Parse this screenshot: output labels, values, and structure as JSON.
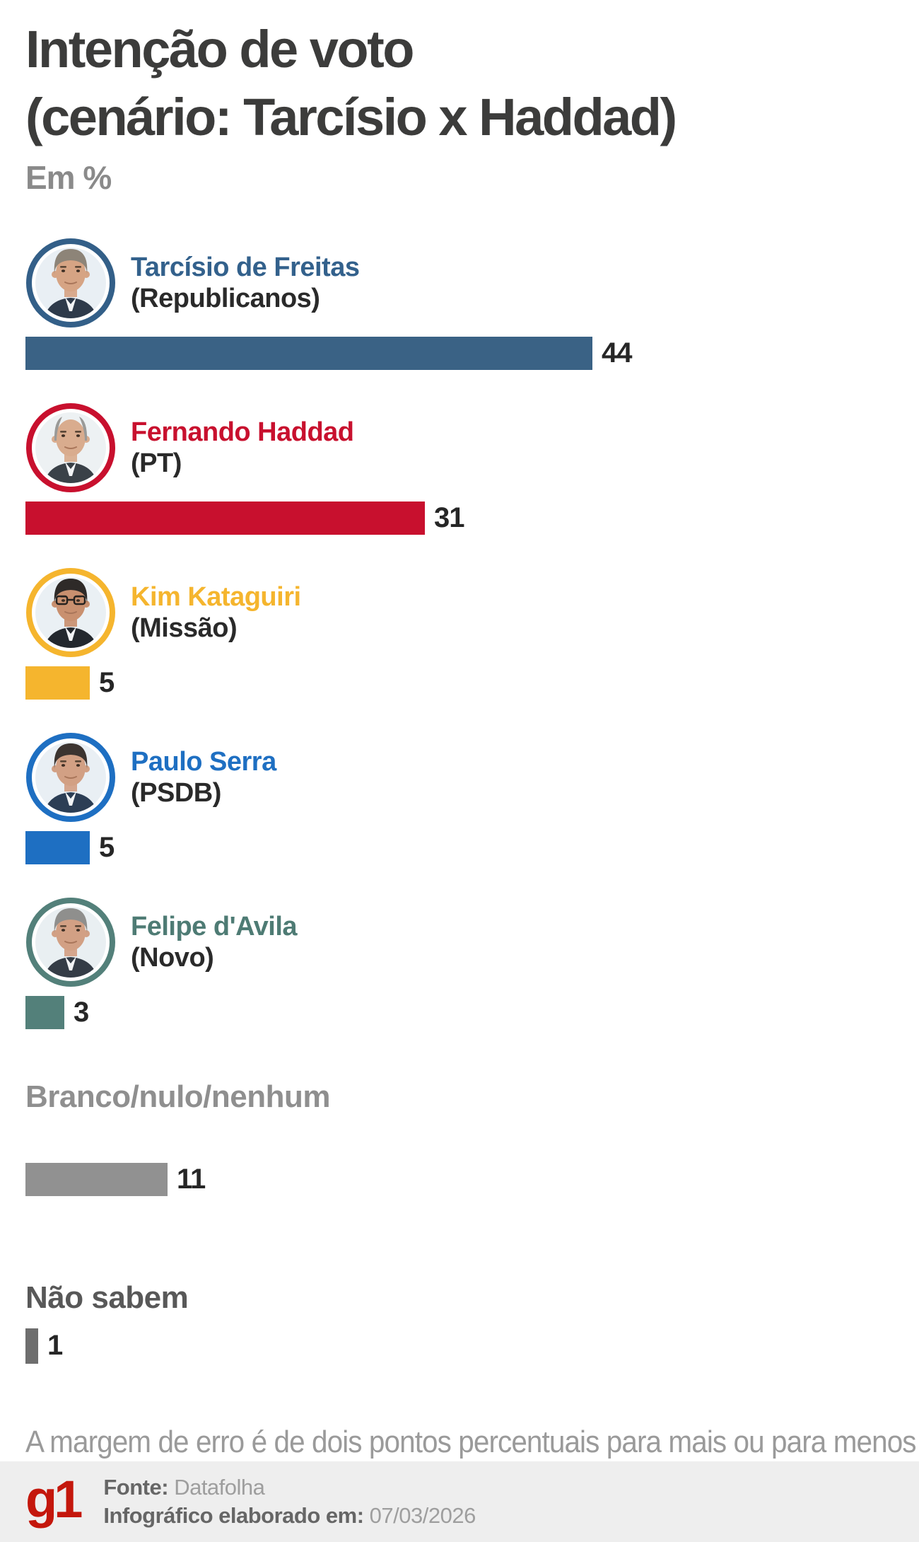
{
  "header": {
    "title_line1": "Intenção de voto",
    "title_line2": "(cenário: Tarcísio x Haddad)",
    "unit_label": "Em %"
  },
  "chart_data": {
    "type": "bar",
    "orientation": "horizontal",
    "unit": "%",
    "title": "Intenção de voto (cenário: Tarcísio x Haddad)",
    "categories": [
      "Tarcísio de Freitas (Republicanos)",
      "Fernando Haddad (PT)",
      "Kim Kataguiri (Missão)",
      "Paulo Serra (PSDB)",
      "Felipe d'Avila (Novo)",
      "Branco/nulo/nenhum",
      "Não sabem"
    ],
    "values": [
      44,
      31,
      5,
      5,
      3,
      11,
      1
    ],
    "colors": [
      "#3A6285",
      "#C8102E",
      "#F5B52E",
      "#1E6FC2",
      "#53807A",
      "#919191",
      "#6E6E6E"
    ],
    "xlim": [
      0,
      44
    ],
    "grid": false,
    "value_labels": "end-of-bar"
  },
  "rows": [
    {
      "type": "candidate",
      "name": "Tarcísio de Freitas",
      "party": "(Republicanos)",
      "value": 44,
      "color": "#3A6285",
      "name_color": "#33618C",
      "avatar": {
        "ring": "#335F88",
        "bg": "#E9EFF4",
        "hair": "#8D8478",
        "skin": "#D6A484",
        "suit": "#2E3A4A",
        "bald": false,
        "glasses": false
      }
    },
    {
      "type": "candidate",
      "name": "Fernando Haddad",
      "party": "(PT)",
      "value": 31,
      "color": "#C8102E",
      "name_color": "#C8102E",
      "avatar": {
        "ring": "#C8102E",
        "bg": "#EDF1F3",
        "hair": "#9A9A98",
        "skin": "#D9AC8E",
        "suit": "#3A4148",
        "bald": true,
        "glasses": false
      }
    },
    {
      "type": "candidate",
      "name": "Kim Kataguiri",
      "party": "(Missão)",
      "value": 5,
      "color": "#F5B52E",
      "name_color": "#F5B52E",
      "avatar": {
        "ring": "#F5B52E",
        "bg": "#EAF0F4",
        "hair": "#2E2A28",
        "skin": "#C9906F",
        "suit": "#23282E",
        "bald": false,
        "glasses": true
      }
    },
    {
      "type": "candidate",
      "name": "Paulo Serra",
      "party": "(PSDB)",
      "value": 5,
      "color": "#1E6FC2",
      "name_color": "#1E6FC2",
      "avatar": {
        "ring": "#1E6FC2",
        "bg": "#E9EFF4",
        "hair": "#3C3430",
        "skin": "#D2A084",
        "suit": "#2C3E55",
        "bald": false,
        "glasses": false
      }
    },
    {
      "type": "candidate",
      "name": "Felipe d'Avila",
      "party": "(Novo)",
      "value": 3,
      "color": "#53807A",
      "name_color": "#4E7B74",
      "avatar": {
        "ring": "#53807A",
        "bg": "#E9EFF2",
        "hair": "#8F8F8D",
        "skin": "#D2A084",
        "suit": "#343C46",
        "bald": false,
        "glasses": false
      }
    },
    {
      "type": "other",
      "label": "Branco/nulo/nenhum",
      "label_color": "#8F8F8F",
      "value": 11,
      "color": "#919191"
    },
    {
      "type": "other",
      "label": "Não sabem",
      "label_color": "#585858",
      "value": 1,
      "color": "#6E6E6E"
    }
  ],
  "footnote": "A margem de erro é de dois pontos percentuais para mais ou para menos",
  "footer": {
    "logo_text": "g1",
    "logo_color": "#C4170C",
    "source_label": "Fonte:",
    "source_value": "Datafolha",
    "date_label": "Infográfico elaborado em:",
    "date_value": "07/03/2026"
  }
}
